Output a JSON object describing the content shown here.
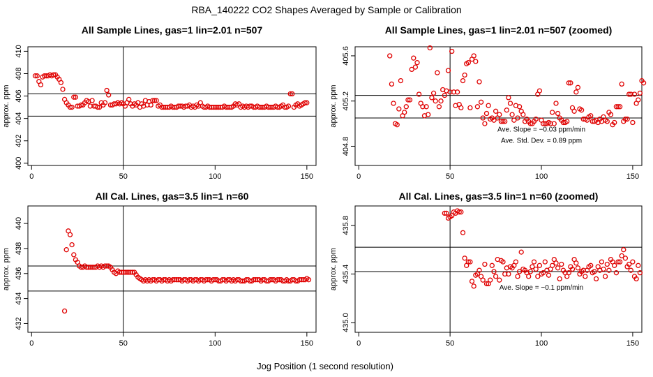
{
  "figure": {
    "title": "RBA_140222  CO2 Shapes Averaged by Sample or Calibration",
    "xlabel": "Jog Position (1 second resolution)"
  },
  "colors": {
    "points": "#e00000",
    "lines": "#000000"
  },
  "chart_data": [
    {
      "id": "p1",
      "type": "scatter",
      "title": "All Sample Lines, gas=1 lin=2.01 n=507",
      "xlabel": "",
      "ylabel": "approx. ppm",
      "xlim": [
        -2,
        155
      ],
      "ylim": [
        399.8,
        410.4
      ],
      "xticks": [
        0,
        50,
        100,
        150
      ],
      "yticks": [
        400,
        402,
        404,
        406,
        408,
        410
      ],
      "hlines": [
        406.2,
        404.2
      ],
      "vline": 50,
      "annotations": [],
      "x_start": 2,
      "y": [
        407.8,
        407.8,
        407.3,
        407.0,
        407.7,
        407.8,
        407.8,
        407.8,
        407.9,
        407.8,
        407.9,
        407.9,
        407.7,
        407.5,
        407.2,
        406.6,
        405.7,
        405.4,
        405.2,
        405.0,
        405.0,
        405.9,
        405.9,
        405.1,
        405.1,
        405.2,
        405.2,
        405.4,
        405.6,
        405.5,
        405.1,
        405.6,
        405.1,
        405.1,
        405.0,
        405.0,
        405.4,
        405.2,
        405.4,
        406.5,
        406.1,
        405.2,
        405.2,
        405.3,
        405.3,
        405.4,
        405.3,
        405.4,
        405.3,
        405.1,
        405.4,
        405.7,
        405.3,
        405.1,
        405.3,
        405.2,
        405.4,
        405.0,
        405.3,
        405.1,
        405.6,
        405.2,
        405.5,
        405.2,
        405.6,
        405.6,
        405.6,
        405.1,
        405.2,
        405.0,
        405.0,
        405.0,
        405.0,
        405.0,
        405.1,
        405.0,
        405.0,
        405.0,
        405.1,
        405.1,
        405.1,
        405.0,
        405.1,
        405.1,
        405.2,
        405.0,
        405.1,
        405.0,
        405.2,
        405.1,
        405.4,
        405.1,
        405.0,
        405.0,
        405.1,
        405.0,
        405.0,
        405.0,
        405.0,
        405.0,
        405.0,
        405.0,
        405.0,
        405.1,
        405.0,
        405.0,
        405.0,
        405.0,
        405.1,
        405.3,
        405.2,
        405.3,
        405.0,
        405.1,
        405.0,
        405.1,
        405.0,
        405.1,
        405.1,
        405.0,
        405.0,
        405.1,
        405.0,
        405.0,
        405.0,
        405.0,
        405.1,
        405.0,
        405.0,
        405.0,
        405.0,
        405.1,
        405.0,
        405.0,
        405.1,
        405.2,
        405.0,
        405.0,
        405.1,
        406.2,
        406.2,
        405.0,
        405.2,
        405.3,
        405.1,
        405.2,
        405.3,
        405.4,
        405.4
      ]
    },
    {
      "id": "p2",
      "type": "scatter",
      "title": "All Sample Lines, gas=1 lin=2.01 n=507 (zoomed)",
      "xlabel": "",
      "ylabel": "approx. ppm",
      "xlim": [
        -2,
        155
      ],
      "ylim": [
        404.63,
        405.68
      ],
      "xticks": [
        0,
        50,
        100,
        150
      ],
      "yticks": [
        404.8,
        405.2,
        405.6
      ],
      "hlines": [
        405.25,
        405.05
      ],
      "vline": 50,
      "annotations": [
        {
          "text": "Ave. Slope =  −0.03  ppm/min",
          "x": 100,
          "y": 404.93
        },
        {
          "text": "Ave. Std. Dev. =  0.89  ppm",
          "x": 100,
          "y": 404.83
        }
      ],
      "x_start": 17,
      "y": [
        405.6,
        405.35,
        405.18,
        405.0,
        404.99,
        405.13,
        405.38,
        405.07,
        405.1,
        405.15,
        405.21,
        405.21,
        405.48,
        405.58,
        405.5,
        405.54,
        405.26,
        405.18,
        405.15,
        405.07,
        405.15,
        405.08,
        405.67,
        405.23,
        405.27,
        405.2,
        405.45,
        405.15,
        405.2,
        405.3,
        405.25,
        405.29,
        405.47,
        405.28,
        405.64,
        405.28,
        405.16,
        405.28,
        405.17,
        405.14,
        405.38,
        405.43,
        405.53,
        405.54,
        405.14,
        405.57,
        405.6,
        405.55,
        405.15,
        405.37,
        405.19,
        405.05,
        405.0,
        405.09,
        405.16,
        405.04,
        405.05,
        405.03,
        405.11,
        405.05,
        405.08,
        405.02,
        405.02,
        405.02,
        405.12,
        405.23,
        405.18,
        405.08,
        405.03,
        405.16,
        405.05,
        405.15,
        405.11,
        405.08,
        405.02,
        405.04,
        405.02,
        405.0,
        405.0,
        405.02,
        405.04,
        405.26,
        405.29,
        405.03,
        405.0,
        405.0,
        405.0,
        405.01,
        405.0,
        405.1,
        405.0,
        405.18,
        405.09,
        405.05,
        405.03,
        405.01,
        405.01,
        405.02,
        405.36,
        405.36,
        405.14,
        405.11,
        405.28,
        405.32,
        405.13,
        405.12,
        405.04,
        405.04,
        405.03,
        405.06,
        405.07,
        405.02,
        405.02,
        405.03,
        405.01,
        405.04,
        405.02,
        405.06,
        405.03,
        405.02,
        405.1,
        405.08,
        404.99,
        405.01,
        405.15,
        405.15,
        405.15,
        405.35,
        405.02,
        405.04,
        405.04,
        405.26,
        405.26,
        405.01,
        405.26,
        405.18,
        405.21,
        405.27,
        405.38,
        405.36
      ]
    },
    {
      "id": "p3",
      "type": "scatter",
      "title": "All Cal. Lines, gas=3.5 lin=1 n=60",
      "xlabel": "",
      "ylabel": "approx. ppm",
      "xlim": [
        -2,
        155
      ],
      "ylim": [
        431.3,
        441.4
      ],
      "xticks": [
        0,
        50,
        100,
        150
      ],
      "yticks": [
        432,
        434,
        436,
        438,
        440
      ],
      "hlines": [
        436.6,
        434.6
      ],
      "vline": 50,
      "annotations": [],
      "x_start": 18,
      "y": [
        433.0,
        437.9,
        439.4,
        439.1,
        438.3,
        437.5,
        437.1,
        436.9,
        436.6,
        436.5,
        436.5,
        436.6,
        436.5,
        436.5,
        436.5,
        436.5,
        436.5,
        436.5,
        436.6,
        436.5,
        436.6,
        436.5,
        436.6,
        436.6,
        436.6,
        436.5,
        436.3,
        436.1,
        436.0,
        436.2,
        436.1,
        436.1,
        436.1,
        436.1,
        436.1,
        436.1,
        436.1,
        436.1,
        436.1,
        435.9,
        435.7,
        435.6,
        435.5,
        435.4,
        435.5,
        435.4,
        435.5,
        435.4,
        435.5,
        435.5,
        435.4,
        435.5,
        435.5,
        435.4,
        435.5,
        435.5,
        435.4,
        435.5,
        435.4,
        435.5,
        435.5,
        435.5,
        435.5,
        435.5,
        435.4,
        435.5,
        435.5,
        435.4,
        435.5,
        435.5,
        435.4,
        435.5,
        435.5,
        435.4,
        435.5,
        435.5,
        435.4,
        435.5,
        435.5,
        435.5,
        435.4,
        435.5,
        435.5,
        435.5,
        435.4,
        435.4,
        435.5,
        435.5,
        435.4,
        435.5,
        435.5,
        435.4,
        435.5,
        435.4,
        435.5,
        435.5,
        435.4,
        435.4,
        435.4,
        435.5,
        435.5,
        435.4,
        435.4,
        435.5,
        435.5,
        435.5,
        435.5,
        435.4,
        435.5,
        435.5,
        435.4,
        435.4,
        435.5,
        435.5,
        435.5,
        435.4,
        435.5,
        435.5,
        435.5,
        435.4,
        435.4,
        435.5,
        435.4,
        435.4,
        435.5,
        435.5,
        435.4,
        435.4,
        435.5,
        435.5,
        435.5,
        435.5,
        435.6,
        435.5
      ]
    },
    {
      "id": "p4",
      "type": "scatter",
      "title": "All Cal. Lines, gas=3.5 lin=1 n=60 (zoomed)",
      "xlabel": "",
      "ylabel": "approx. ppm",
      "xlim": [
        -2,
        155
      ],
      "ylim": [
        434.92,
        435.96
      ],
      "xticks": [
        0,
        50,
        100,
        150
      ],
      "yticks": [
        435.0,
        435.4,
        435.8
      ],
      "hlines": [
        435.62,
        435.42
      ],
      "vline": 50,
      "annotations": [
        {
          "text": "Ave. Slope =  −0.1  ppm/min",
          "x": 100,
          "y": 435.27
        }
      ],
      "x_start": 47,
      "y": [
        435.9,
        435.9,
        435.86,
        435.87,
        435.88,
        435.91,
        435.9,
        435.92,
        435.91,
        435.91,
        435.74,
        435.53,
        435.47,
        435.5,
        435.5,
        435.34,
        435.3,
        435.39,
        435.4,
        435.43,
        435.38,
        435.35,
        435.48,
        435.32,
        435.32,
        435.35,
        435.47,
        435.42,
        435.38,
        435.52,
        435.35,
        435.51,
        435.5,
        435.4,
        435.45,
        435.4,
        435.46,
        435.45,
        435.47,
        435.5,
        435.38,
        435.42,
        435.58,
        435.44,
        435.43,
        435.41,
        435.38,
        435.42,
        435.46,
        435.5,
        435.44,
        435.38,
        435.47,
        435.4,
        435.41,
        435.5,
        435.43,
        435.39,
        435.44,
        435.47,
        435.52,
        435.49,
        435.45,
        435.36,
        435.48,
        435.43,
        435.41,
        435.38,
        435.41,
        435.46,
        435.44,
        435.52,
        435.49,
        435.45,
        435.4,
        435.42,
        435.43,
        435.38,
        435.43,
        435.46,
        435.47,
        435.41,
        435.42,
        435.36,
        435.46,
        435.43,
        435.5,
        435.44,
        435.38,
        435.48,
        435.43,
        435.52,
        435.5,
        435.47,
        435.41,
        435.5,
        435.5,
        435.55,
        435.6,
        435.53,
        435.46,
        435.48,
        435.43,
        435.5,
        435.38,
        435.36,
        435.47,
        435.41
      ]
    }
  ]
}
